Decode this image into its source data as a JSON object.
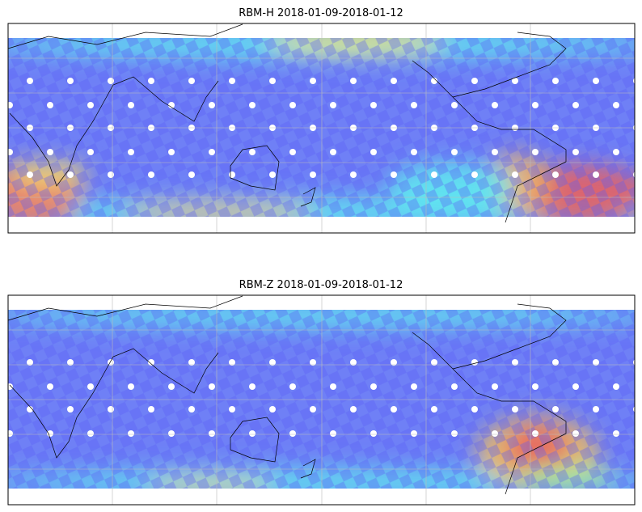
{
  "maps": [
    {
      "title": "RBM-H 2018-01-09-2018-01-12"
    },
    {
      "title": "RBM-Z 2018-01-09-2018-01-12"
    }
  ]
}
